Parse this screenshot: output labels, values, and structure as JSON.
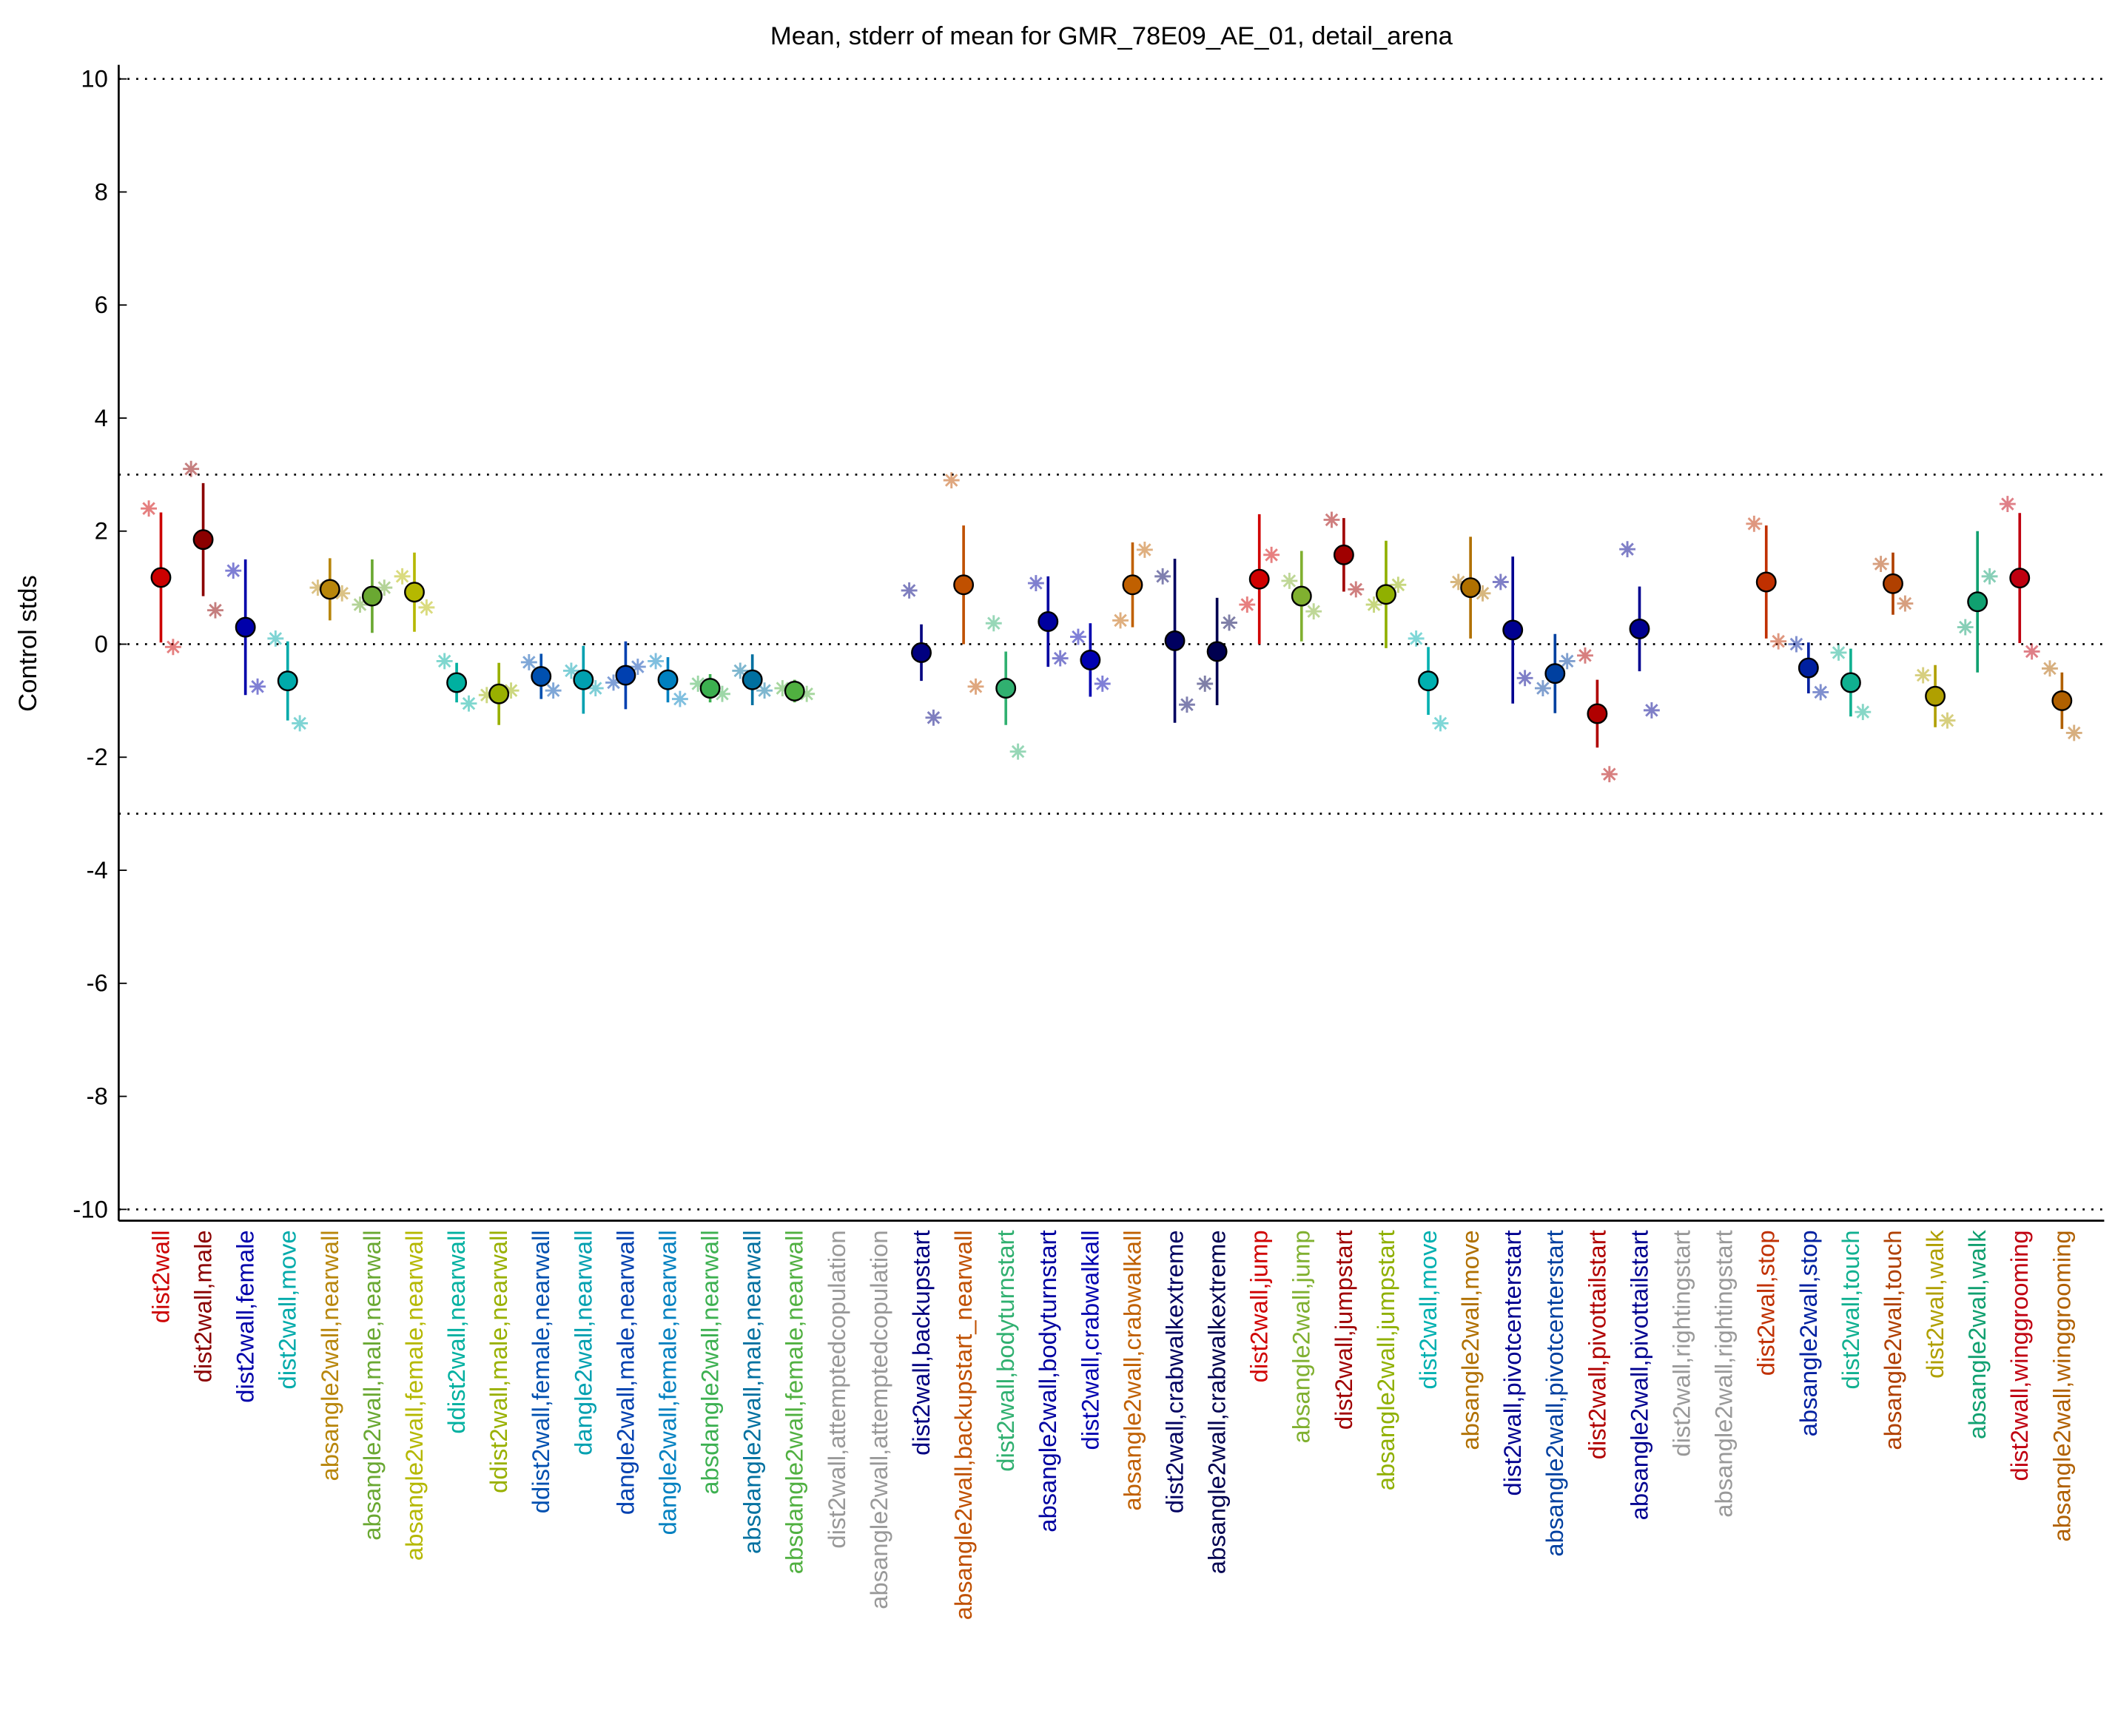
{
  "chart_data": {
    "type": "errorbar",
    "title": "Mean, stderr of mean for GMR_78E09_AE_01, detail_arena",
    "y_label": "Control stds",
    "ylim": [
      -10.2,
      10.25
    ],
    "yticks": [
      -10,
      -8,
      -6,
      -4,
      -2,
      0,
      2,
      4,
      6,
      8,
      10
    ],
    "reference_lines": [
      -10,
      -3,
      0,
      3,
      10
    ],
    "categories": [
      "dist2wall",
      "dist2wall,male",
      "dist2wall,female",
      "dist2wall,move",
      "absangle2wall,nearwall",
      "absangle2wall,male,nearwall",
      "absangle2wall,female,nearwall",
      "ddist2wall,nearwall",
      "ddist2wall,male,nearwall",
      "ddist2wall,female,nearwall",
      "dangle2wall,nearwall",
      "dangle2wall,male,nearwall",
      "dangle2wall,female,nearwall",
      "absdangle2wall,nearwall",
      "absdangle2wall,male,nearwall",
      "absdangle2wall,female,nearwall",
      "dist2wall,attemptedcopulation",
      "absangle2wall,attemptedcopulation",
      "dist2wall,backupstart",
      "absangle2wall,backupstart_nearwall",
      "dist2wall,bodyturnstart",
      "absangle2wall,bodyturnstart",
      "dist2wall,crabwalkall",
      "absangle2wall,crabwalkall",
      "dist2wall,crabwalkextreme",
      "absangle2wall,crabwalkextreme",
      "dist2wall,jump",
      "absangle2wall,jump",
      "dist2wall,jumpstart",
      "absangle2wall,jumpstart",
      "dist2wall,move",
      "absangle2wall,move",
      "dist2wall,pivotcenterstart",
      "absangle2wall,pivotcenterstart",
      "dist2wall,pivottailstart",
      "absangle2wall,pivottailstart",
      "dist2wall,rightingstart",
      "absangle2wall,rightingstart",
      "dist2wall,stop",
      "absangle2wall,stop",
      "dist2wall,touch",
      "absangle2wall,touch",
      "dist2wall,walk",
      "absangle2wall,walk",
      "dist2wall,winggrooming",
      "absangle2wall,winggrooming"
    ],
    "colors": [
      "#cc0000",
      "#8b0000",
      "#0000aa",
      "#00aaaa",
      "#b8860b",
      "#6aa832",
      "#b5b800",
      "#00b0a0",
      "#99b000",
      "#0050b0",
      "#00a0b0",
      "#0040b0",
      "#0080c0",
      "#3cb050",
      "#0070a0",
      "#50b040",
      "#999999",
      "#999999",
      "#000080",
      "#c05000",
      "#30b070",
      "#0000a0",
      "#0000b0",
      "#c06000",
      "#000060",
      "#000050",
      "#d00000",
      "#80b030",
      "#a00000",
      "#90b000",
      "#00b0b0",
      "#b07000",
      "#000090",
      "#0040a0",
      "#b00000",
      "#000090",
      "#999999",
      "#999999",
      "#c03000",
      "#0020a0",
      "#10b090",
      "#b04000",
      "#b0a000",
      "#10a070",
      "#c00010",
      "#b06000"
    ],
    "values": [
      1.18,
      1.85,
      0.3,
      -0.65,
      0.97,
      0.85,
      0.92,
      -0.68,
      -0.88,
      -0.57,
      -0.63,
      -0.55,
      -0.63,
      -0.78,
      -0.63,
      -0.83,
      null,
      null,
      -0.15,
      1.05,
      -0.78,
      0.4,
      -0.28,
      1.05,
      0.06,
      -0.13,
      1.15,
      0.85,
      1.58,
      0.88,
      -0.65,
      1.0,
      0.25,
      -0.52,
      -1.23,
      0.27,
      null,
      null,
      1.1,
      -0.42,
      -0.68,
      1.07,
      -0.92,
      0.75,
      1.17,
      -1.0
    ],
    "errors": [
      1.15,
      1.0,
      1.2,
      0.7,
      0.55,
      0.65,
      0.7,
      0.35,
      0.55,
      0.4,
      0.6,
      0.6,
      0.4,
      0.25,
      0.45,
      0.2,
      null,
      null,
      0.5,
      1.05,
      0.65,
      0.8,
      0.65,
      0.75,
      1.45,
      0.95,
      1.15,
      0.8,
      0.65,
      0.95,
      0.6,
      0.9,
      1.3,
      0.7,
      0.6,
      0.75,
      null,
      null,
      1.0,
      0.45,
      0.6,
      0.55,
      0.55,
      1.25,
      1.15,
      0.5
    ],
    "left_values": [
      2.4,
      3.1,
      1.3,
      0.1,
      1.0,
      0.7,
      1.2,
      -0.3,
      -0.9,
      -0.32,
      -0.47,
      -0.68,
      -0.3,
      -0.7,
      -0.47,
      -0.78,
      null,
      null,
      0.95,
      2.9,
      0.37,
      1.08,
      0.13,
      0.42,
      1.2,
      -0.7,
      0.7,
      1.12,
      2.2,
      0.7,
      0.1,
      1.1,
      1.1,
      -0.78,
      -0.2,
      1.68,
      null,
      null,
      2.13,
      0.0,
      -0.15,
      1.42,
      -0.55,
      0.3,
      2.48,
      -0.43
    ],
    "right_values": [
      -0.05,
      0.6,
      -0.75,
      -1.4,
      0.9,
      1.0,
      0.65,
      -1.05,
      -0.82,
      -0.82,
      -0.78,
      -0.4,
      -0.97,
      -0.88,
      -0.82,
      -0.88,
      null,
      null,
      -1.3,
      -0.75,
      -1.9,
      -0.25,
      -0.7,
      1.67,
      -1.07,
      0.38,
      1.58,
      0.58,
      0.97,
      1.05,
      -1.4,
      0.9,
      -0.6,
      -0.3,
      -2.3,
      -1.17,
      null,
      null,
      0.05,
      -0.85,
      -1.2,
      0.72,
      -1.35,
      1.2,
      -0.13,
      -1.57
    ]
  }
}
